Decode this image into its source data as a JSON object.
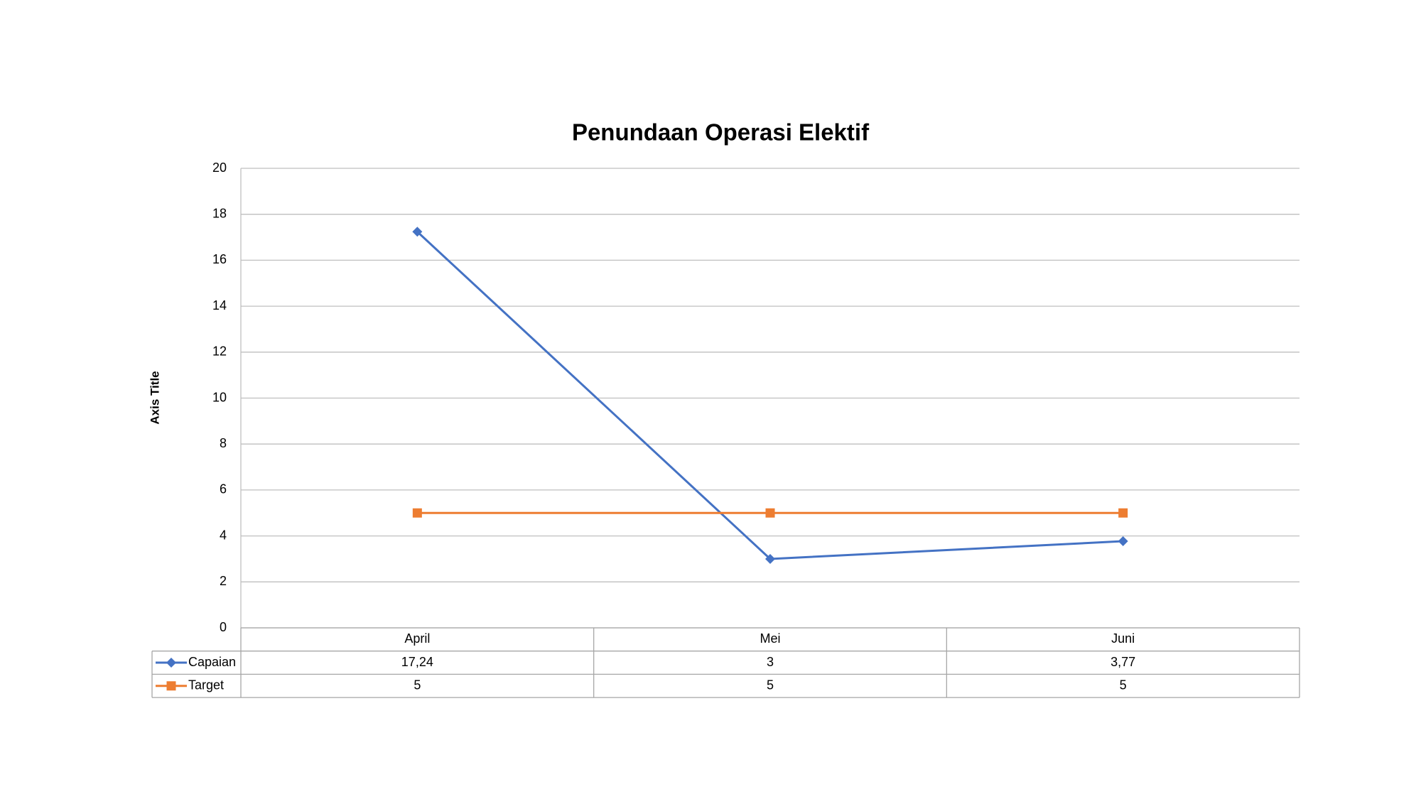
{
  "chart_data": {
    "type": "line",
    "title": "Penundaan Operasi Elektif",
    "y_label": "Axis Title",
    "categories": [
      "April",
      "Mei",
      "Juni"
    ],
    "series": [
      {
        "name": "Capaian",
        "color": "#4472c4",
        "marker": "diamond",
        "values": [
          17.24,
          3,
          3.77
        ],
        "value_labels": [
          "17,24",
          "3",
          "3,77"
        ]
      },
      {
        "name": "Target",
        "color": "#ed7d31",
        "marker": "square",
        "values": [
          5,
          5,
          5
        ]
      }
    ],
    "ylim": [
      0,
      20
    ],
    "yticks": [
      0,
      2,
      4,
      6,
      8,
      10,
      12,
      14,
      16,
      18,
      20
    ],
    "grid": true,
    "data_table": true
  }
}
